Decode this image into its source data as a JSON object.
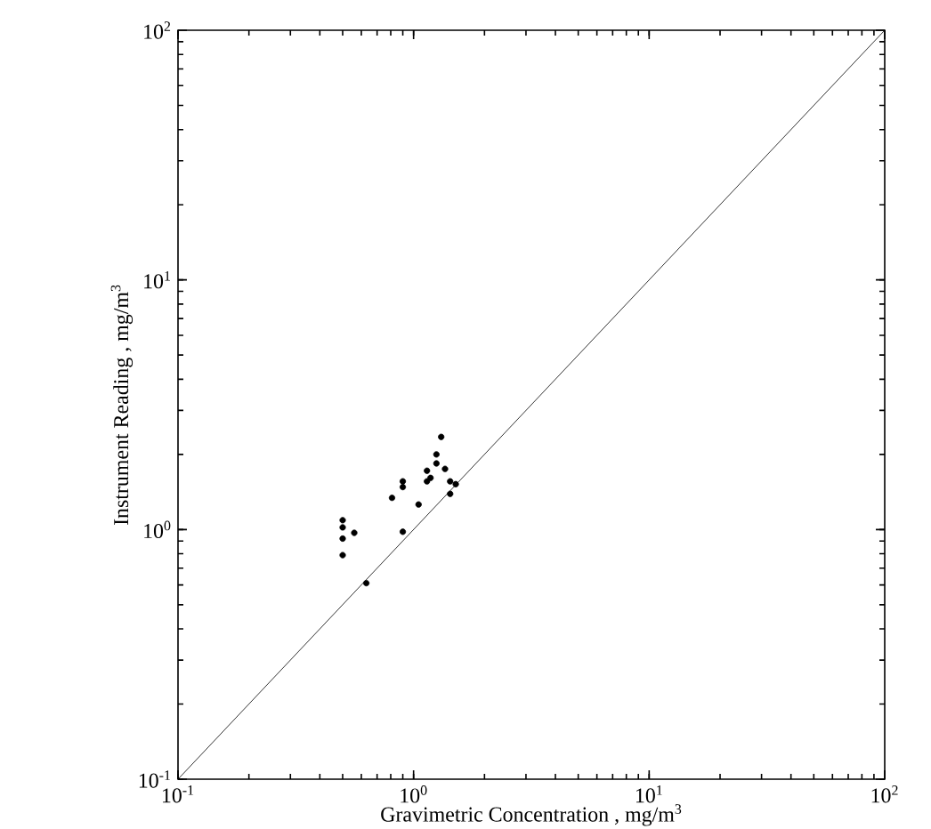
{
  "chart_data": {
    "type": "scatter",
    "xlabel": "Gravimetric Concentration , mg/m$^{3}$",
    "ylabel": "Instrument Reading , mg/m$^{3}$",
    "log": "xy",
    "xlim": [
      0.1,
      100
    ],
    "ylim": [
      0.1,
      100
    ],
    "xticks": [
      {
        "value": 0.1,
        "label": "10$^{-1}$"
      },
      {
        "value": 1,
        "label": "10$^{0}$"
      },
      {
        "value": 10,
        "label": "10$^{1}$"
      },
      {
        "value": 100,
        "label": "10$^{2}$"
      }
    ],
    "yticks": [
      {
        "value": 0.1,
        "label": "10$^{-1}$"
      },
      {
        "value": 1,
        "label": "10$^{0}$"
      },
      {
        "value": 10,
        "label": "10$^{1}$"
      },
      {
        "value": 100,
        "label": "10$^{2}$"
      }
    ],
    "grid": false,
    "marker": "circle",
    "series": [
      {
        "color": "#000000",
        "x": [
          0.5,
          0.5,
          0.5,
          0.5,
          0.56,
          0.63,
          0.9,
          1.05,
          0.81,
          0.9,
          0.9,
          1.14,
          1.14,
          1.25,
          1.31,
          1.25,
          1.36,
          1.43,
          1.51,
          1.43,
          1.18
        ],
        "values": [
          1.09,
          1.02,
          0.92,
          0.79,
          0.97,
          0.61,
          0.98,
          1.26,
          1.34,
          1.56,
          1.48,
          1.56,
          1.72,
          2.0,
          2.35,
          1.84,
          1.75,
          1.56,
          1.52,
          1.39,
          1.61
        ]
      },
      {
        "type": "line",
        "color": "#000000",
        "x": [
          0.1,
          100
        ],
        "values": [
          0.1,
          100
        ],
        "marker": "none",
        "line_style": "solid"
      }
    ]
  }
}
